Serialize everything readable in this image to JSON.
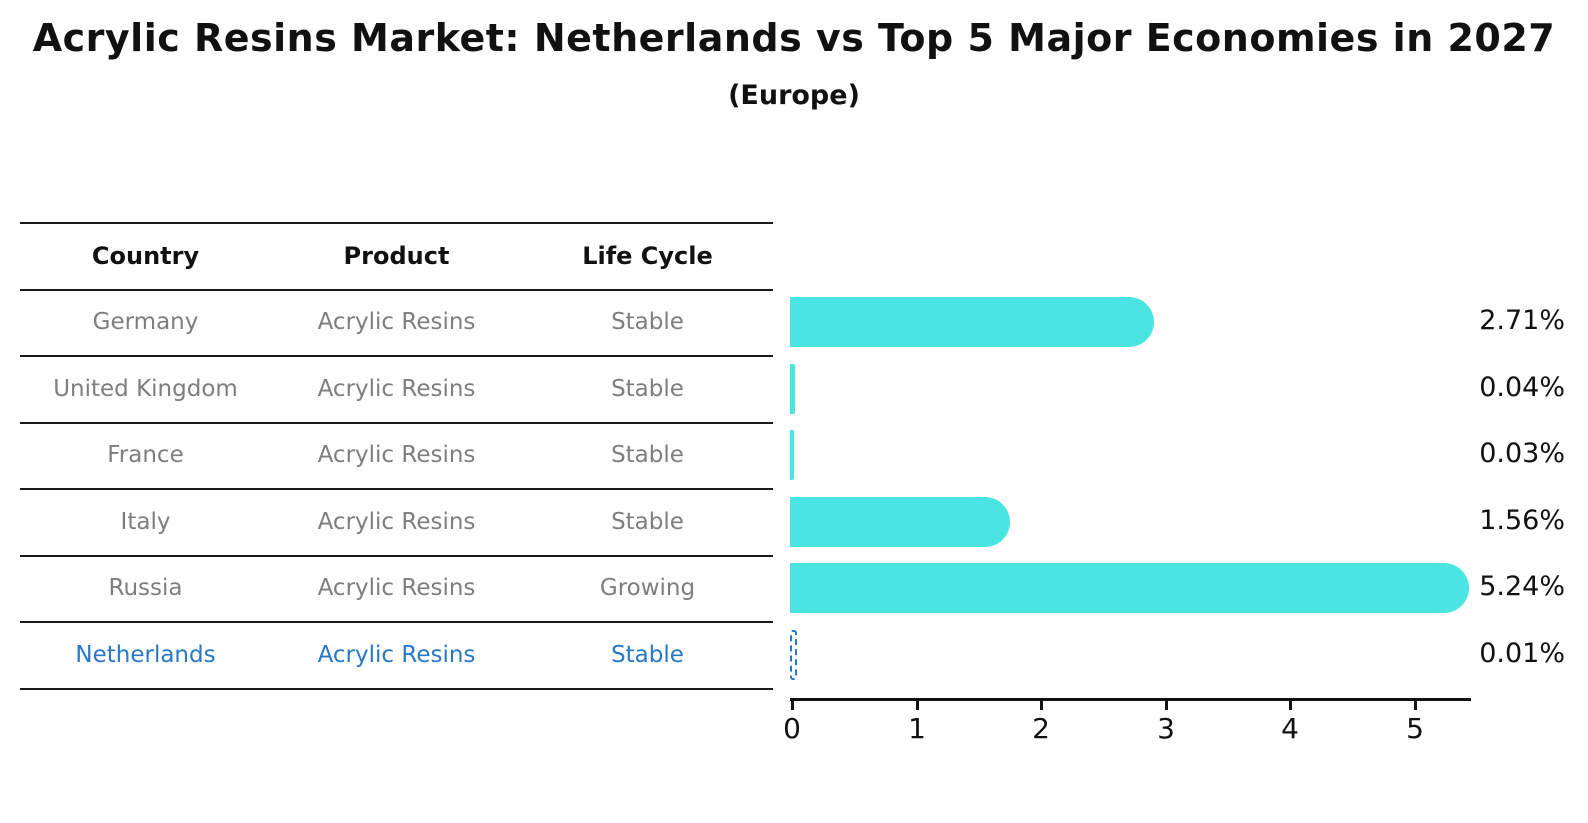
{
  "title": "Acrylic Resins Market: Netherlands vs Top 5 Major Economies in 2027",
  "subtitle": "(Europe)",
  "table": {
    "headers": [
      "Country",
      "Product",
      "Life Cycle"
    ],
    "rows": [
      {
        "country": "Germany",
        "product": "Acrylic Resins",
        "life_cycle": "Stable",
        "highlight": false
      },
      {
        "country": "United Kingdom",
        "product": "Acrylic Resins",
        "life_cycle": "Stable",
        "highlight": false
      },
      {
        "country": "France",
        "product": "Acrylic Resins",
        "life_cycle": "Stable",
        "highlight": false
      },
      {
        "country": "Italy",
        "product": "Acrylic Resins",
        "life_cycle": "Stable",
        "highlight": false
      },
      {
        "country": "Russia",
        "product": "Acrylic Resins",
        "life_cycle": "Growing",
        "highlight": false
      },
      {
        "country": "Netherlands",
        "product": "Acrylic Resins",
        "life_cycle": "Stable",
        "highlight": true
      }
    ]
  },
  "chart_data": {
    "type": "bar",
    "orientation": "horizontal",
    "title": "Acrylic Resins Market: Netherlands vs Top 5 Major Economies in 2027",
    "subtitle": "(Europe)",
    "categories": [
      "Germany",
      "United Kingdom",
      "France",
      "Italy",
      "Russia",
      "Netherlands"
    ],
    "values": [
      2.71,
      0.04,
      0.03,
      1.56,
      5.24,
      0.01
    ],
    "value_labels": [
      "2.71%",
      "0.04%",
      "0.03%",
      "1.56%",
      "5.24%",
      "0.01%"
    ],
    "x_ticks": [
      "0",
      "1",
      "2",
      "3",
      "4",
      "5"
    ],
    "xlim": [
      0,
      5.5
    ],
    "grid": false,
    "legend": false,
    "highlight_index": 5,
    "highlight_style": "dashed-outline"
  },
  "colors": {
    "bar": "#4ae4e2",
    "highlight": "#2878c8",
    "table_text": "#7e7e7e",
    "line": "#1a1a1a",
    "text": "#111111"
  }
}
